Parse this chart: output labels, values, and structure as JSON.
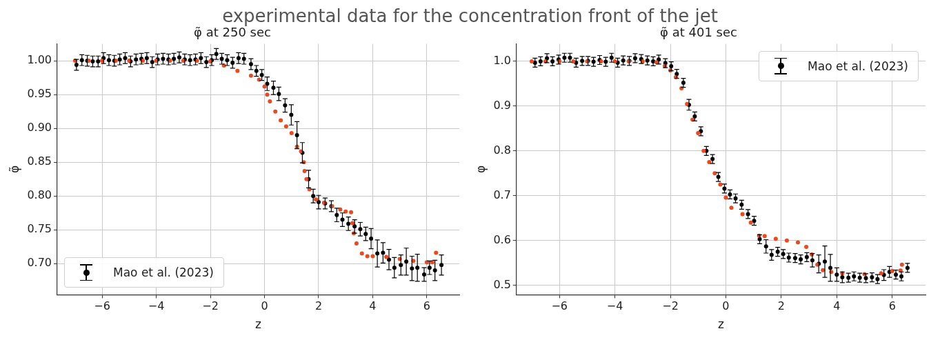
{
  "chart_data": [
    {
      "type": "scatter",
      "title": "φ̃ at 250 sec",
      "xlabel": "z",
      "ylabel": "φ̃",
      "annotations": [
        "experimental data for the concentration front of the jet"
      ],
      "xlim": [
        -7.66,
        7.2
      ],
      "ylim": [
        0.654,
        1.025
      ],
      "xticks": [
        {
          "value": -6,
          "label": "−6"
        },
        {
          "value": -4,
          "label": "−4"
        },
        {
          "value": -2,
          "label": "−2"
        },
        0,
        2,
        4,
        6
      ],
      "yticks": [
        {
          "value": 0.7,
          "label": "0.70"
        },
        {
          "value": 0.75,
          "label": "0.75"
        },
        {
          "value": 0.8,
          "label": "0.80"
        },
        {
          "value": 0.85,
          "label": "0.85"
        },
        {
          "value": 0.9,
          "label": "0.90"
        },
        {
          "value": 0.95,
          "label": "0.95"
        },
        {
          "value": 1,
          "label": "1.00"
        }
      ],
      "grid": true,
      "legend": "bottom left",
      "marker": "circle",
      "series": [
        {
          "color": "#ea4a1e",
          "x": [
            -7,
            -6.5,
            -6,
            -5.5,
            -5,
            -4.5,
            -4,
            -3.5,
            -3,
            -2.5,
            -2,
            -1.5,
            -1,
            -0.5,
            -0.2,
            0,
            0.1,
            0.2,
            0.4,
            0.6,
            0.8,
            1,
            1.2,
            1.35,
            1.45,
            1.48,
            1.55,
            1.66,
            1.9,
            2.2,
            2.5,
            2.8,
            3,
            3.2,
            3.25,
            3.3,
            3.4,
            3.6,
            3.8,
            4,
            4.5,
            5,
            5.5,
            6,
            6.2,
            6.34
          ],
          "values": [
            1,
            1,
            1,
            1,
            1,
            1,
            1,
            1,
            1,
            1,
            0.999,
            0.993,
            0.985,
            0.978,
            0.972,
            0.962,
            0.95,
            0.94,
            0.925,
            0.912,
            0.903,
            0.893,
            0.873,
            0.866,
            0.85,
            0.837,
            0.825,
            0.81,
            0.795,
            0.79,
            0.785,
            0.78,
            0.777,
            0.776,
            0.76,
            0.745,
            0.73,
            0.715,
            0.711,
            0.711,
            0.71,
            0.707,
            0.704,
            0.702,
            0.702,
            0.716
          ]
        },
        {
          "name": "Mao et al. (2023)",
          "color": "#000000",
          "x": [
            -6.95,
            -6.75,
            -6.55,
            -6.35,
            -6.15,
            -5.95,
            -5.75,
            -5.55,
            -5.35,
            -5.15,
            -4.95,
            -4.75,
            -4.55,
            -4.35,
            -4.15,
            -3.95,
            -3.75,
            -3.55,
            -3.35,
            -3.15,
            -2.95,
            -2.75,
            -2.55,
            -2.35,
            -2.15,
            -1.95,
            -1.78,
            -1.58,
            -1.38,
            -1.18,
            -0.96,
            -0.76,
            -0.5,
            -0.3,
            -0.1,
            0.1,
            0.33,
            0.53,
            0.76,
            0.99,
            1.2,
            1.4,
            1.63,
            1.8,
            2,
            2.24,
            2.47,
            2.67,
            2.88,
            3.1,
            3.33,
            3.54,
            3.74,
            3.94,
            4.17,
            4.38,
            4.6,
            4.8,
            5.04,
            5.24,
            5.45,
            5.65,
            5.9,
            6.1,
            6.3,
            6.54
          ],
          "values": [
            0.994,
            1.001,
            1,
            0.999,
            0.999,
            1.004,
            1.001,
            1,
            1.002,
            1.004,
            0.999,
            1.002,
            1.003,
            1.004,
            0.998,
            1.002,
            1.003,
            1.002,
            1.003,
            1.005,
            1.002,
            1.001,
            1.002,
            1.004,
            0.998,
            1.001,
            1.01,
            1.003,
            1.001,
            0.997,
            1.004,
            1.003,
            0.995,
            0.985,
            0.979,
            0.966,
            0.96,
            0.951,
            0.934,
            0.92,
            0.89,
            0.864,
            0.825,
            0.8,
            0.791,
            0.789,
            0.785,
            0.772,
            0.765,
            0.759,
            0.755,
            0.751,
            0.744,
            0.737,
            0.715,
            0.716,
            0.706,
            0.694,
            0.698,
            0.703,
            0.693,
            0.694,
            0.684,
            0.694,
            0.69,
            0.698
          ],
          "errors": [
            0.008,
            0.008,
            0.008,
            0.008,
            0.008,
            0.008,
            0.008,
            0.008,
            0.008,
            0.008,
            0.008,
            0.008,
            0.008,
            0.008,
            0.008,
            0.008,
            0.008,
            0.008,
            0.008,
            0.008,
            0.008,
            0.008,
            0.008,
            0.008,
            0.008,
            0.008,
            0.008,
            0.008,
            0.008,
            0.008,
            0.008,
            0.008,
            0.008,
            0.008,
            0.008,
            0.01,
            0.01,
            0.01,
            0.01,
            0.015,
            0.02,
            0.015,
            0.013,
            0.01,
            0.01,
            0.008,
            0.008,
            0.01,
            0.01,
            0.01,
            0.01,
            0.01,
            0.01,
            0.015,
            0.02,
            0.015,
            0.015,
            0.015,
            0.015,
            0.02,
            0.018,
            0.02,
            0.01,
            0.01,
            0.015,
            0.015
          ]
        }
      ]
    },
    {
      "type": "scatter",
      "title": "φ̃ at 401 sec",
      "xlabel": "z",
      "ylabel": "φ",
      "xlim": [
        -7.55,
        7.2
      ],
      "ylim": [
        0.479,
        1.039
      ],
      "xticks": [
        {
          "value": -6,
          "label": "−6"
        },
        {
          "value": -4,
          "label": "−4"
        },
        {
          "value": -2,
          "label": "−2"
        },
        0,
        2,
        4,
        6
      ],
      "yticks": [
        0.5,
        0.6,
        0.7,
        0.8,
        0.9,
        {
          "value": 1,
          "label": "1.0"
        }
      ],
      "grid": true,
      "legend": "top right",
      "marker": "circle",
      "series": [
        {
          "color": "#ea4a1e",
          "x": [
            -7,
            -6.5,
            -6,
            -5.5,
            -5,
            -4.5,
            -4,
            -3.5,
            -3,
            -2.5,
            -2.2,
            -2,
            -1.8,
            -1.6,
            -1.4,
            -1.2,
            -1,
            -0.8,
            -0.6,
            -0.4,
            -0.2,
            0,
            0.2,
            0.6,
            0.9,
            1.2,
            1.4,
            1.8,
            2.2,
            2.6,
            2.9,
            3.1,
            3.3,
            3.5,
            3.8,
            4.2,
            5,
            5.6,
            6,
            6.3,
            6.35
          ],
          "values": [
            1,
            1,
            1,
            1,
            1,
            1,
            1,
            1,
            1,
            0.998,
            0.99,
            0.98,
            0.965,
            0.94,
            0.905,
            0.87,
            0.84,
            0.8,
            0.775,
            0.75,
            0.725,
            0.696,
            0.673,
            0.659,
            0.64,
            0.611,
            0.61,
            0.604,
            0.6,
            0.596,
            0.586,
            0.569,
            0.546,
            0.534,
            0.53,
            0.527,
            0.525,
            0.527,
            0.532,
            0.533,
            0.546
          ]
        },
        {
          "name": "Mao et al. (2023)",
          "color": "#000000",
          "x": [
            -6.88,
            -6.68,
            -6.45,
            -6.25,
            -6.03,
            -5.82,
            -5.62,
            -5.4,
            -5.18,
            -4.97,
            -4.77,
            -4.55,
            -4.33,
            -4.12,
            -3.9,
            -3.7,
            -3.48,
            -3.27,
            -3.05,
            -2.83,
            -2.62,
            -2.42,
            -2.18,
            -1.97,
            -1.77,
            -1.53,
            -1.33,
            -1.12,
            -0.9,
            -0.7,
            -0.48,
            -0.27,
            -0.05,
            0.15,
            0.35,
            0.57,
            0.8,
            1.02,
            1.22,
            1.45,
            1.65,
            1.87,
            2.07,
            2.27,
            2.5,
            2.7,
            2.92,
            3.12,
            3.35,
            3.57,
            3.77,
            4,
            4.2,
            4.42,
            4.62,
            4.83,
            5.05,
            5.27,
            5.47,
            5.7,
            5.9,
            6.13,
            6.33,
            6.55
          ],
          "values": [
            0.997,
            1,
            1.007,
            1,
            1.004,
            1.008,
            1.008,
            0.997,
            1.001,
            1.001,
            0.999,
            1.003,
            0.999,
            1.008,
            0.997,
            1.002,
            1.001,
            1.007,
            1.005,
            1.002,
            1,
            1.004,
            0.996,
            0.989,
            0.972,
            0.952,
            0.903,
            0.877,
            0.844,
            0.8,
            0.782,
            0.742,
            0.716,
            0.703,
            0.694,
            0.68,
            0.659,
            0.644,
            0.603,
            0.587,
            0.568,
            0.575,
            0.57,
            0.562,
            0.561,
            0.558,
            0.563,
            0.556,
            0.548,
            0.553,
            0.539,
            0.524,
            0.518,
            0.517,
            0.52,
            0.517,
            0.516,
            0.518,
            0.514,
            0.523,
            0.53,
            0.524,
            0.52,
            0.539
          ],
          "errors": [
            0.01,
            0.01,
            0.01,
            0.01,
            0.01,
            0.01,
            0.01,
            0.01,
            0.01,
            0.01,
            0.01,
            0.01,
            0.01,
            0.01,
            0.01,
            0.01,
            0.01,
            0.01,
            0.01,
            0.01,
            0.01,
            0.01,
            0.01,
            0.01,
            0.01,
            0.01,
            0.012,
            0.01,
            0.01,
            0.01,
            0.01,
            0.01,
            0.01,
            0.01,
            0.01,
            0.01,
            0.01,
            0.01,
            0.01,
            0.015,
            0.012,
            0.01,
            0.01,
            0.01,
            0.01,
            0.01,
            0.01,
            0.015,
            0.02,
            0.035,
            0.03,
            0.015,
            0.012,
            0.01,
            0.01,
            0.01,
            0.01,
            0.01,
            0.01,
            0.012,
            0.012,
            0.01,
            0.01,
            0.01
          ]
        }
      ]
    }
  ]
}
